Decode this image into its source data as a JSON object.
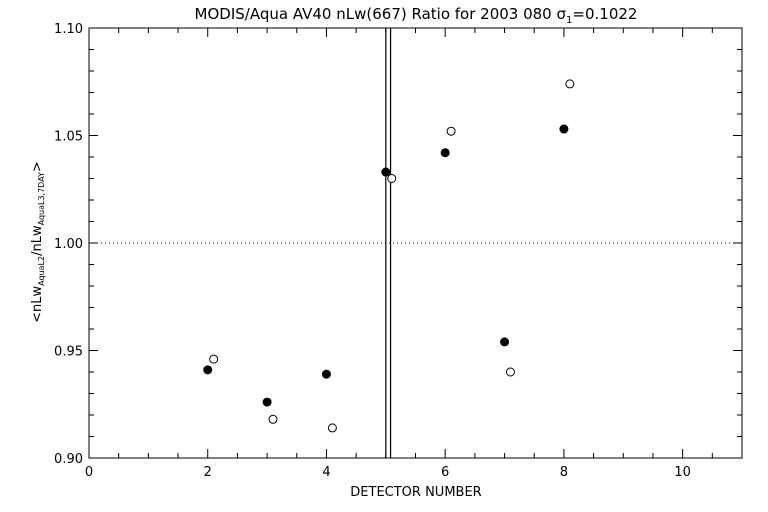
{
  "chart_data": {
    "type": "scatter",
    "title": "MODIS/Aqua AV40 nLw(667) Ratio for 2003 080 σ",
    "title_sub": "1",
    "title_suffix": "=0.1022",
    "xlabel": "DETECTOR NUMBER",
    "ylabel": {
      "a": "<nLw",
      "a_sub": "AquaL2",
      "b": "/nLw",
      "b_sub": "AquaL3,7DAY",
      "c": ">"
    },
    "xlim": [
      0,
      11
    ],
    "ylim": [
      0.9,
      1.1
    ],
    "xticks": [
      0,
      2,
      4,
      6,
      8,
      10
    ],
    "xtick_labels": [
      "0",
      "2",
      "4",
      "6",
      "8",
      "10"
    ],
    "yticks": [
      0.9,
      0.95,
      1.0,
      1.05,
      1.1
    ],
    "ytick_labels": [
      "0.90",
      "0.95",
      "1.00",
      "1.05",
      "1.10"
    ],
    "reference_line_y": 1.0,
    "vertical_lines_x": [
      5.0,
      5.08
    ],
    "series": [
      {
        "marker": "filled-circle",
        "points": [
          {
            "x": 2.0,
            "y": 0.941
          },
          {
            "x": 3.0,
            "y": 0.926
          },
          {
            "x": 4.0,
            "y": 0.939
          },
          {
            "x": 5.0,
            "y": 1.033
          },
          {
            "x": 6.0,
            "y": 1.042
          },
          {
            "x": 7.0,
            "y": 0.954
          },
          {
            "x": 8.0,
            "y": 1.053
          }
        ]
      },
      {
        "marker": "open-circle",
        "points": [
          {
            "x": 2.1,
            "y": 0.946
          },
          {
            "x": 3.1,
            "y": 0.918
          },
          {
            "x": 4.1,
            "y": 0.914
          },
          {
            "x": 5.1,
            "y": 1.03
          },
          {
            "x": 6.1,
            "y": 1.052
          },
          {
            "x": 7.1,
            "y": 0.94
          },
          {
            "x": 8.1,
            "y": 1.074
          }
        ]
      }
    ]
  }
}
